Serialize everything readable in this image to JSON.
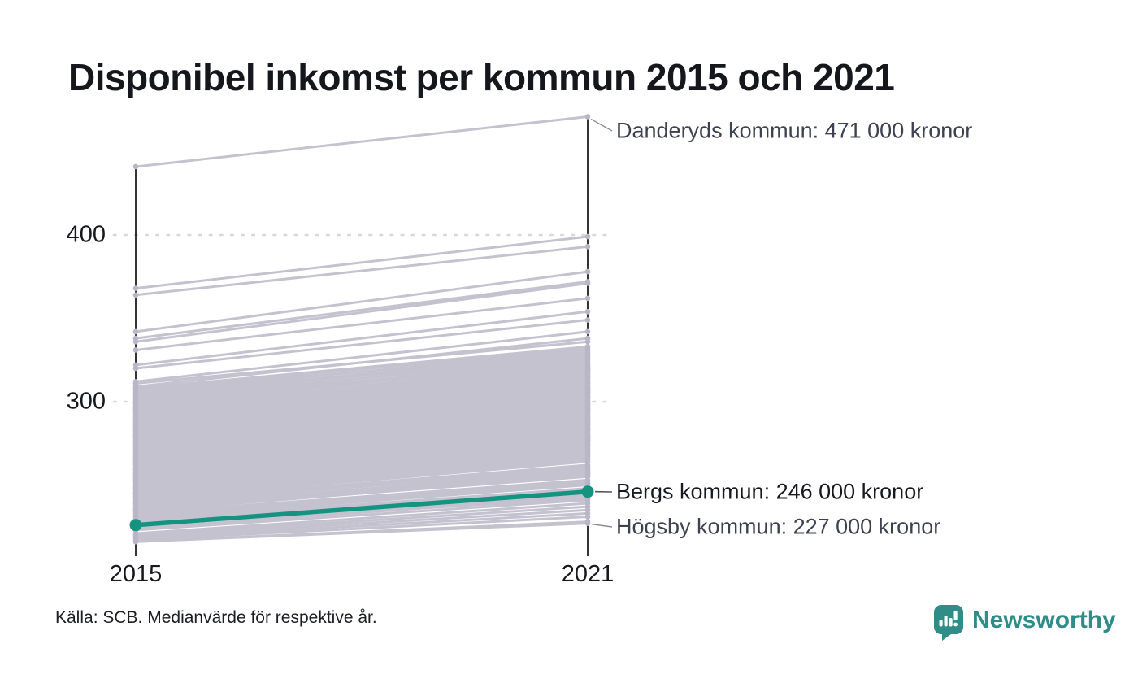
{
  "header": {
    "title": "Disponibel inkomst per kommun 2015 och 2021"
  },
  "chart": {
    "y_axis": {
      "ticks": [
        "400",
        "300"
      ]
    },
    "x_axis": {
      "left_label": "2015",
      "right_label": "2021"
    }
  },
  "annotations": {
    "danderyd": "Danderyds kommun: 471 000 kronor",
    "bergs": "Bergs kommun: 246 000 kronor",
    "hogsby": "Högsby kommun: 227 000 kronor"
  },
  "footer": {
    "source": "Källa: SCB. Medianvärde för respektive år.",
    "logo_text": "Newsworthy"
  },
  "colors": {
    "highlight_teal": "#149480",
    "slope_line_gray": "#c5c2d0",
    "endpoint_dot_gray": "#b9b6c7",
    "axis_black": "#111111",
    "gridline_gray": "#d8d8da",
    "leader_gray": "#8a8a93",
    "brand_teal": "#2f8c86",
    "annotation_text": "#3d4250",
    "title_text": "#15171c"
  },
  "chart_data": {
    "type": "line",
    "subtype": "slope-chart",
    "title": "Disponibel inkomst per kommun 2015 och 2021",
    "x": [
      2015,
      2021
    ],
    "x_labels": [
      "2015",
      "2021"
    ],
    "yticks": [
      400,
      300
    ],
    "ylim": [
      212,
      475
    ],
    "y_unit": "000 kronor",
    "grid": "dotted-horizontal",
    "legend": "none",
    "highlighted_series": {
      "name": "Bergs kommun",
      "values": [
        226,
        246
      ],
      "color": "#149480"
    },
    "labeled_points": [
      {
        "name": "Danderyds kommun",
        "year": 2021,
        "value_thousands": 471,
        "label": "Danderyds kommun: 471 000 kronor"
      },
      {
        "name": "Bergs kommun",
        "year": 2021,
        "value_thousands": 246,
        "label": "Bergs kommun: 246 000 kronor"
      },
      {
        "name": "Högsby kommun",
        "year": 2021,
        "value_thousands": 227,
        "label": "Högsby kommun: 227 000 kronor"
      }
    ],
    "series": [
      [
        441,
        471
      ],
      [
        368,
        399
      ],
      [
        364,
        393
      ],
      [
        342,
        378
      ],
      [
        338,
        372
      ],
      [
        336,
        371
      ],
      [
        331,
        362
      ],
      [
        322,
        354
      ],
      [
        320,
        349
      ],
      [
        312,
        342
      ],
      [
        311,
        336
      ],
      [
        309,
        338
      ],
      [
        308,
        333
      ],
      [
        307,
        332
      ],
      [
        306,
        330
      ],
      [
        305,
        331
      ],
      [
        304,
        329
      ],
      [
        303,
        328
      ],
      [
        302,
        326
      ],
      [
        301,
        327
      ],
      [
        300,
        325
      ],
      [
        300,
        323
      ],
      [
        299,
        324
      ],
      [
        299,
        321
      ],
      [
        298,
        322
      ],
      [
        297,
        320
      ],
      [
        296,
        319
      ],
      [
        296,
        321
      ],
      [
        295,
        318
      ],
      [
        295,
        320
      ],
      [
        294,
        317
      ],
      [
        294,
        319
      ],
      [
        293,
        318
      ],
      [
        293,
        315
      ],
      [
        292,
        316
      ],
      [
        291,
        314
      ],
      [
        291,
        317
      ],
      [
        290,
        313
      ],
      [
        290,
        315
      ],
      [
        289,
        312
      ],
      [
        288,
        314
      ],
      [
        288,
        311
      ],
      [
        287,
        310
      ],
      [
        286,
        312
      ],
      [
        286,
        309
      ],
      [
        285,
        308
      ],
      [
        285,
        311
      ],
      [
        284,
        307
      ],
      [
        284,
        309
      ],
      [
        283,
        306
      ],
      [
        283,
        308
      ],
      [
        282,
        305
      ],
      [
        282,
        307
      ],
      [
        281,
        304
      ],
      [
        280,
        306
      ],
      [
        280,
        303
      ],
      [
        279,
        302
      ],
      [
        279,
        305
      ],
      [
        278,
        301
      ],
      [
        278,
        303
      ],
      [
        277,
        300
      ],
      [
        276,
        299
      ],
      [
        276,
        302
      ],
      [
        275,
        298
      ],
      [
        275,
        300
      ],
      [
        274,
        297
      ],
      [
        274,
        299
      ],
      [
        273,
        296
      ],
      [
        273,
        298
      ],
      [
        272,
        295
      ],
      [
        272,
        297
      ],
      [
        271,
        294
      ],
      [
        271,
        296
      ],
      [
        270,
        293
      ],
      [
        270,
        295
      ],
      [
        269,
        292
      ],
      [
        268,
        291
      ],
      [
        268,
        294
      ],
      [
        267,
        290
      ],
      [
        267,
        292
      ],
      [
        266,
        289
      ],
      [
        266,
        291
      ],
      [
        265,
        288
      ],
      [
        265,
        290
      ],
      [
        264,
        287
      ],
      [
        264,
        289
      ],
      [
        263,
        286
      ],
      [
        263,
        288
      ],
      [
        262,
        285
      ],
      [
        262,
        287
      ],
      [
        261,
        284
      ],
      [
        260,
        283
      ],
      [
        260,
        286
      ],
      [
        259,
        282
      ],
      [
        259,
        284
      ],
      [
        258,
        281
      ],
      [
        257,
        280
      ],
      [
        257,
        283
      ],
      [
        256,
        279
      ],
      [
        256,
        281
      ],
      [
        255,
        278
      ],
      [
        255,
        280
      ],
      [
        254,
        277
      ],
      [
        254,
        279
      ],
      [
        253,
        276
      ],
      [
        253,
        278
      ],
      [
        252,
        275
      ],
      [
        252,
        277
      ],
      [
        251,
        274
      ],
      [
        250,
        273
      ],
      [
        250,
        276
      ],
      [
        249,
        272
      ],
      [
        248,
        271
      ],
      [
        248,
        274
      ],
      [
        247,
        270
      ],
      [
        246,
        269
      ],
      [
        246,
        272
      ],
      [
        245,
        268
      ],
      [
        245,
        270
      ],
      [
        244,
        267
      ],
      [
        243,
        266
      ],
      [
        243,
        268
      ],
      [
        242,
        265
      ],
      [
        241,
        264
      ],
      [
        240,
        262
      ],
      [
        239,
        261
      ],
      [
        238,
        260
      ],
      [
        237,
        258
      ],
      [
        236,
        257
      ],
      [
        236,
        259
      ],
      [
        235,
        255
      ],
      [
        235,
        257
      ],
      [
        234,
        256
      ],
      [
        233,
        253
      ],
      [
        232,
        252
      ],
      [
        231,
        251
      ],
      [
        230,
        250
      ],
      [
        229,
        248
      ],
      [
        228,
        247
      ],
      [
        227,
        246
      ],
      [
        226,
        244
      ],
      [
        226,
        242
      ],
      [
        224,
        243
      ],
      [
        223,
        241
      ],
      [
        221,
        239
      ],
      [
        220,
        237
      ],
      [
        219,
        235
      ],
      [
        218,
        233
      ],
      [
        217,
        231
      ],
      [
        216,
        228
      ],
      [
        216,
        227
      ]
    ]
  }
}
